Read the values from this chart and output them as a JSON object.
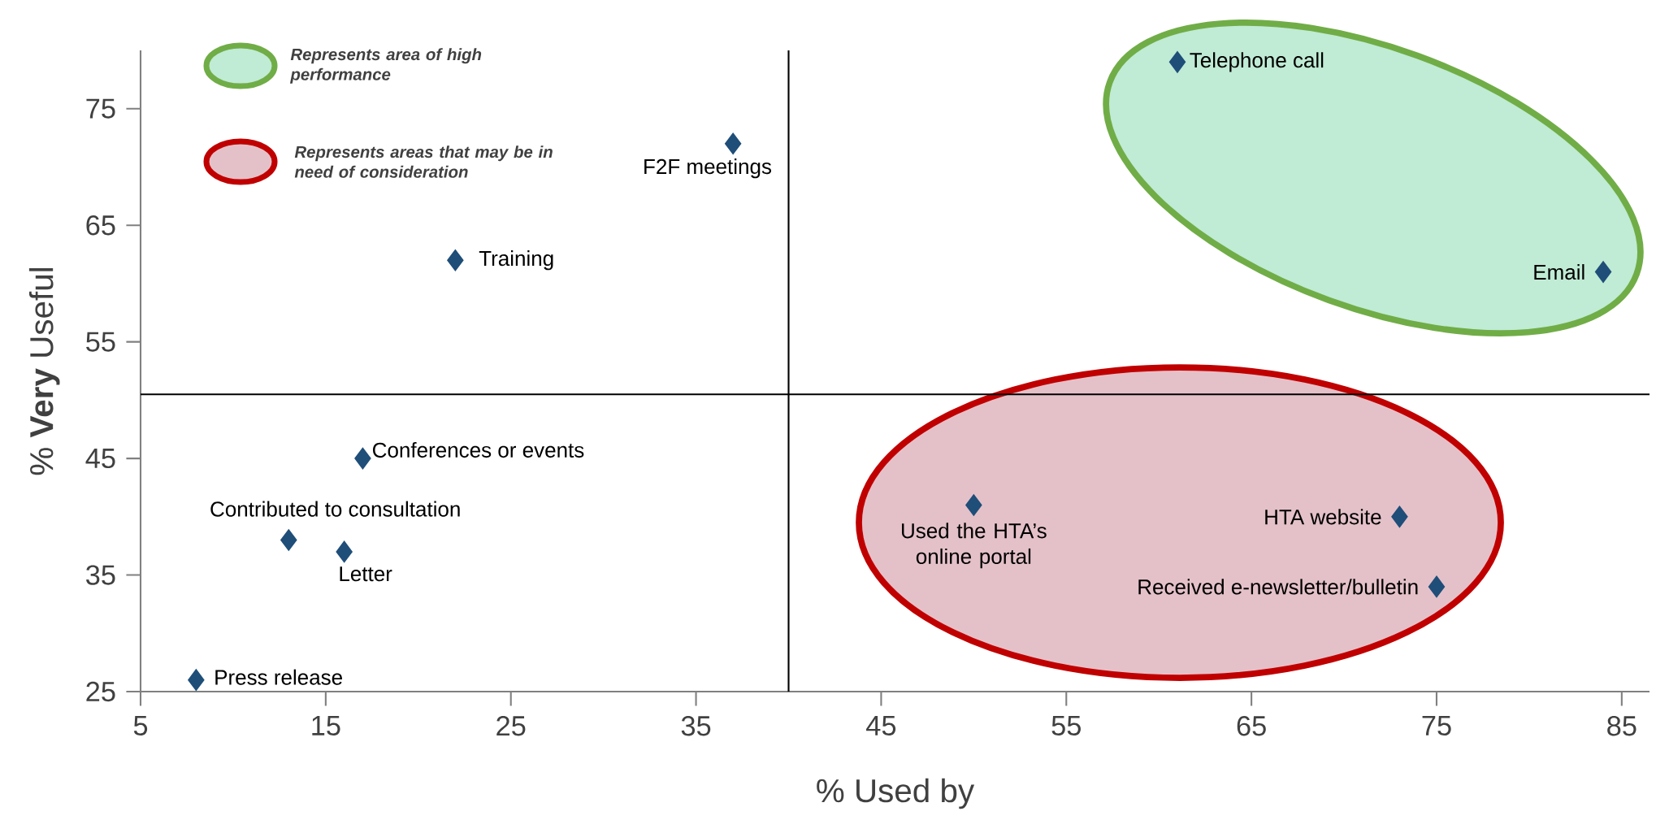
{
  "chart_data": {
    "type": "scatter",
    "xlabel": "% Used by",
    "ylabel": "% **Very** Useful",
    "x": [
      61,
      84,
      37,
      22,
      17,
      13,
      16,
      8,
      50,
      73,
      75
    ],
    "values": [
      79,
      61,
      72,
      62,
      45,
      38,
      37,
      26,
      41,
      40,
      34
    ],
    "color": "#1f4e79",
    "marker": "diamond",
    "xlim": [
      5,
      86.5
    ],
    "xticks": [
      5,
      15,
      25,
      35,
      45,
      55,
      65,
      75,
      85
    ],
    "ylim": [
      25,
      80
    ],
    "yticks": [
      25,
      35,
      45,
      55,
      65,
      75
    ],
    "grid": false,
    "ref_lines": [
      {
        "axis": "x",
        "value": 40,
        "color": "#000000"
      },
      {
        "axis": "y",
        "value": 50.5,
        "color": "#000000"
      }
    ],
    "annotations": [
      "Represents area of high performance",
      "Represents areas that may be in need of consideration",
      {
        "text": "Telephone call",
        "x": 61,
        "y": 79
      },
      {
        "text": "Email",
        "x": 84,
        "y": 61
      },
      {
        "text": "F2F meetings",
        "x": 37,
        "y": 72
      },
      {
        "text": "Training",
        "x": 22,
        "y": 62
      },
      {
        "text": "Conferences or events",
        "x": 17,
        "y": 45
      },
      {
        "text": "Contributed to consultation",
        "x": 13,
        "y": 38
      },
      {
        "text": "Letter",
        "x": 16,
        "y": 37
      },
      {
        "text": "Press release",
        "x": 8,
        "y": 26
      },
      {
        "text": "Used the HTA’s online portal",
        "x": 50,
        "y": 41
      },
      {
        "text": "HTA website",
        "x": 73,
        "y": 40
      },
      {
        "text": "Received e-newsletter/bulletin",
        "x": 75,
        "y": 34
      }
    ]
  }
}
